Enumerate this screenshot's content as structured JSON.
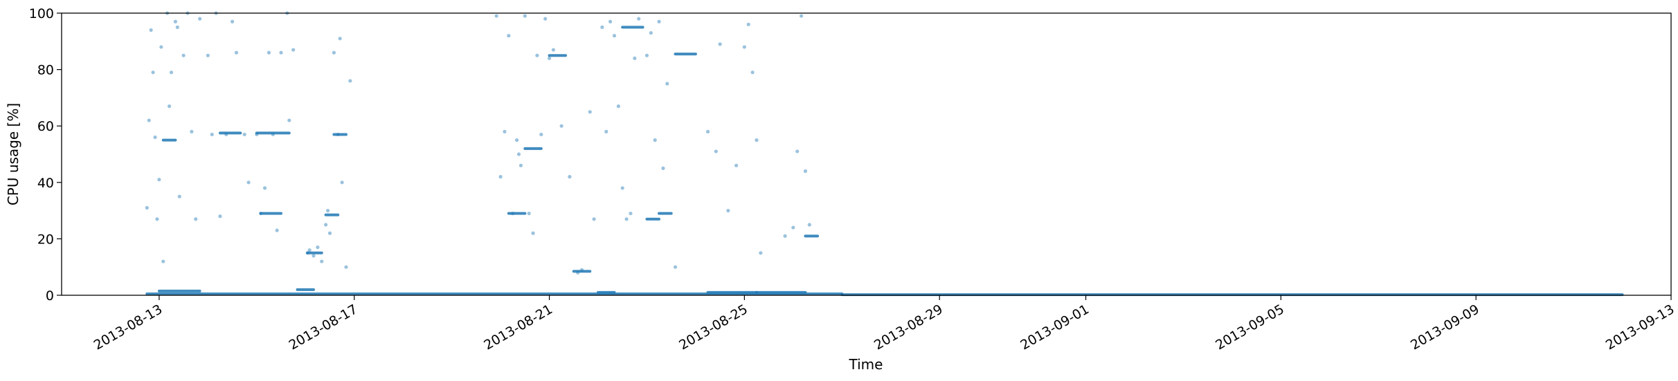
{
  "chart_data": {
    "type": "scatter",
    "xlabel": "Time",
    "ylabel": "CPU usage [%]",
    "ylim": [
      0,
      100
    ],
    "xlim": [
      "2013-08-11",
      "2013-09-13"
    ],
    "xticks": [
      "2013-08-13",
      "2013-08-17",
      "2013-08-21",
      "2013-08-25",
      "2013-08-29",
      "2013-09-01",
      "2013-09-05",
      "2013-09-09",
      "2013-09-13"
    ],
    "yticks": [
      0,
      20,
      40,
      60,
      80,
      100
    ],
    "grid": false,
    "point_color": "#1f77b4",
    "point_alpha": 0.45,
    "series": [
      {
        "points": [
          [
            "2013-08-12 18:00",
            31
          ],
          [
            "2013-08-12 19:00",
            62
          ],
          [
            "2013-08-12 20:00",
            94
          ],
          [
            "2013-08-12 21:00",
            79
          ],
          [
            "2013-08-12 22:00",
            56
          ],
          [
            "2013-08-12 23:00",
            27
          ],
          [
            "2013-08-13 00:00",
            41
          ],
          [
            "2013-08-13 01:00",
            88
          ],
          [
            "2013-08-13 02:00",
            12
          ],
          [
            "2013-08-13 04:00",
            100
          ],
          [
            "2013-08-13 05:00",
            67
          ],
          [
            "2013-08-13 06:00",
            79
          ],
          [
            "2013-08-13 08:00",
            97
          ],
          [
            "2013-08-13 09:00",
            95
          ],
          [
            "2013-08-13 10:00",
            35
          ],
          [
            "2013-08-13 12:00",
            85
          ],
          [
            "2013-08-13 14:00",
            100
          ],
          [
            "2013-08-13 16:00",
            58
          ],
          [
            "2013-08-13 18:00",
            27
          ],
          [
            "2013-08-13 20:00",
            98
          ],
          [
            "2013-08-14 00:00",
            85
          ],
          [
            "2013-08-14 02:00",
            57
          ],
          [
            "2013-08-14 04:00",
            100
          ],
          [
            "2013-08-14 06:00",
            28
          ],
          [
            "2013-08-14 09:00",
            57
          ],
          [
            "2013-08-14 12:00",
            97
          ],
          [
            "2013-08-14 14:00",
            86
          ],
          [
            "2013-08-14 18:00",
            57
          ],
          [
            "2013-08-14 20:00",
            40
          ],
          [
            "2013-08-15 00:00",
            57
          ],
          [
            "2013-08-15 02:00",
            29
          ],
          [
            "2013-08-15 04:00",
            38
          ],
          [
            "2013-08-15 06:00",
            86
          ],
          [
            "2013-08-15 08:00",
            57
          ],
          [
            "2013-08-15 10:00",
            23
          ],
          [
            "2013-08-15 12:00",
            86
          ],
          [
            "2013-08-15 15:00",
            100
          ],
          [
            "2013-08-15 16:00",
            62
          ],
          [
            "2013-08-15 18:00",
            87
          ],
          [
            "2013-08-16 01:00",
            15
          ],
          [
            "2013-08-16 02:00",
            16
          ],
          [
            "2013-08-16 04:00",
            14
          ],
          [
            "2013-08-16 06:00",
            17
          ],
          [
            "2013-08-16 08:00",
            12
          ],
          [
            "2013-08-16 10:00",
            25
          ],
          [
            "2013-08-16 11:00",
            30
          ],
          [
            "2013-08-16 12:00",
            22
          ],
          [
            "2013-08-16 14:00",
            86
          ],
          [
            "2013-08-16 16:00",
            57
          ],
          [
            "2013-08-16 17:00",
            91
          ],
          [
            "2013-08-16 18:00",
            40
          ],
          [
            "2013-08-16 20:00",
            10
          ],
          [
            "2013-08-16 22:00",
            76
          ],
          [
            "2013-08-19 22:00",
            99
          ],
          [
            "2013-08-20 00:00",
            42
          ],
          [
            "2013-08-20 02:00",
            58
          ],
          [
            "2013-08-20 04:00",
            92
          ],
          [
            "2013-08-20 06:00",
            29
          ],
          [
            "2013-08-20 08:00",
            55
          ],
          [
            "2013-08-20 09:00",
            50
          ],
          [
            "2013-08-20 10:00",
            46
          ],
          [
            "2013-08-20 12:00",
            99
          ],
          [
            "2013-08-20 14:00",
            29
          ],
          [
            "2013-08-20 16:00",
            22
          ],
          [
            "2013-08-20 18:00",
            85
          ],
          [
            "2013-08-20 20:00",
            57
          ],
          [
            "2013-08-20 22:00",
            98
          ],
          [
            "2013-08-21 00:00",
            84
          ],
          [
            "2013-08-21 02:00",
            87
          ],
          [
            "2013-08-21 06:00",
            60
          ],
          [
            "2013-08-21 10:00",
            42
          ],
          [
            "2013-08-21 14:00",
            8
          ],
          [
            "2013-08-21 16:00",
            9
          ],
          [
            "2013-08-21 20:00",
            65
          ],
          [
            "2013-08-21 22:00",
            27
          ],
          [
            "2013-08-22 02:00",
            95
          ],
          [
            "2013-08-22 04:00",
            58
          ],
          [
            "2013-08-22 06:00",
            97
          ],
          [
            "2013-08-22 08:00",
            92
          ],
          [
            "2013-08-22 10:00",
            67
          ],
          [
            "2013-08-22 12:00",
            38
          ],
          [
            "2013-08-22 14:00",
            27
          ],
          [
            "2013-08-22 16:00",
            29
          ],
          [
            "2013-08-22 18:00",
            84
          ],
          [
            "2013-08-22 20:00",
            98
          ],
          [
            "2013-08-23 00:00",
            85
          ],
          [
            "2013-08-23 02:00",
            93
          ],
          [
            "2013-08-23 04:00",
            55
          ],
          [
            "2013-08-23 06:00",
            97
          ],
          [
            "2013-08-23 08:00",
            45
          ],
          [
            "2013-08-23 10:00",
            75
          ],
          [
            "2013-08-23 14:00",
            10
          ],
          [
            "2013-08-24 06:00",
            58
          ],
          [
            "2013-08-24 10:00",
            51
          ],
          [
            "2013-08-24 12:00",
            89
          ],
          [
            "2013-08-24 16:00",
            30
          ],
          [
            "2013-08-24 20:00",
            46
          ],
          [
            "2013-08-25 00:00",
            88
          ],
          [
            "2013-08-25 02:00",
            96
          ],
          [
            "2013-08-25 04:00",
            79
          ],
          [
            "2013-08-25 06:00",
            55
          ],
          [
            "2013-08-25 08:00",
            15
          ],
          [
            "2013-08-25 20:00",
            21
          ],
          [
            "2013-08-26 00:00",
            24
          ],
          [
            "2013-08-26 02:00",
            51
          ],
          [
            "2013-08-26 04:00",
            99
          ],
          [
            "2013-08-26 06:00",
            44
          ],
          [
            "2013-08-26 08:00",
            25
          ]
        ],
        "segments": [
          [
            "2013-08-12 18:00",
            "2013-08-27 00:00",
            0.5
          ],
          [
            "2013-08-13 00:00",
            "2013-08-13 20:00",
            1.5
          ],
          [
            "2013-08-13 02:00",
            "2013-08-13 08:00",
            55
          ],
          [
            "2013-08-14 06:00",
            "2013-08-14 16:00",
            57.5
          ],
          [
            "2013-08-15 00:00",
            "2013-08-15 16:00",
            57.5
          ],
          [
            "2013-08-15 02:00",
            "2013-08-15 12:00",
            29
          ],
          [
            "2013-08-15 20:00",
            "2013-08-16 04:00",
            2
          ],
          [
            "2013-08-16 01:00",
            "2013-08-16 08:00",
            15
          ],
          [
            "2013-08-16 14:00",
            "2013-08-16 20:00",
            57
          ],
          [
            "2013-08-16 10:00",
            "2013-08-16 16:00",
            28.5
          ],
          [
            "2013-08-20 04:00",
            "2013-08-20 12:00",
            29
          ],
          [
            "2013-08-20 12:00",
            "2013-08-20 20:00",
            52
          ],
          [
            "2013-08-21 00:00",
            "2013-08-21 08:00",
            85
          ],
          [
            "2013-08-21 12:00",
            "2013-08-21 20:00",
            8.5
          ],
          [
            "2013-08-22 00:00",
            "2013-08-22 08:00",
            1
          ],
          [
            "2013-08-22 12:00",
            "2013-08-22 22:00",
            95
          ],
          [
            "2013-08-23 00:00",
            "2013-08-23 06:00",
            27
          ],
          [
            "2013-08-23 06:00",
            "2013-08-23 12:00",
            29
          ],
          [
            "2013-08-23 14:00",
            "2013-08-24 00:00",
            85.5
          ],
          [
            "2013-08-24 06:00",
            "2013-08-25 06:00",
            1
          ],
          [
            "2013-08-25 06:00",
            "2013-08-26 06:00",
            1
          ],
          [
            "2013-08-26 06:00",
            "2013-08-26 12:00",
            21
          ],
          [
            "2013-08-27 00:00",
            "2013-09-12 00:00",
            0.2
          ]
        ]
      }
    ]
  }
}
